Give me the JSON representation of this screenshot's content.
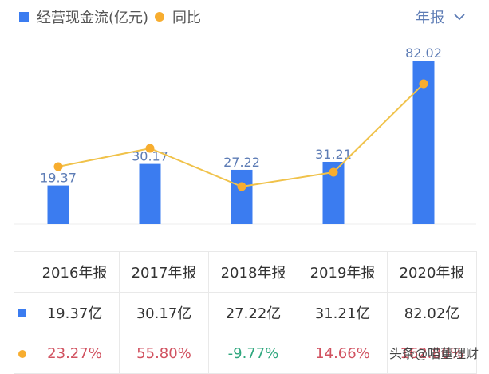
{
  "legend": {
    "bar_label": "经营现金流(亿元)",
    "line_label": "同比"
  },
  "period_selector": {
    "label": "年报",
    "icon": "chevron-down-icon"
  },
  "colors": {
    "bar": "#3b7cf0",
    "line": "#f7ad2f",
    "positive": "#d15260",
    "negative": "#2fa77e",
    "value_label": "#5d7cb5"
  },
  "chart_data": {
    "type": "bar",
    "title": "",
    "xlabel": "",
    "ylabel": "",
    "categories": [
      "2016年报",
      "2017年报",
      "2018年报",
      "2019年报",
      "2020年报"
    ],
    "series": [
      {
        "name": "经营现金流(亿元)",
        "type": "bar",
        "values": [
          19.37,
          30.17,
          27.22,
          31.21,
          82.02
        ],
        "labels": [
          "19.37",
          "30.17",
          "27.22",
          "31.21",
          "82.02"
        ]
      },
      {
        "name": "同比",
        "type": "line",
        "values": [
          23.27,
          55.8,
          -9.77,
          14.66,
          162.8
        ],
        "unit": "%"
      }
    ],
    "grid": false,
    "legend_position": "top-left"
  },
  "table": {
    "headers": [
      "2016年报",
      "2017年报",
      "2018年报",
      "2019年报",
      "2020年报"
    ],
    "cash_flow": [
      "19.37亿",
      "30.17亿",
      "27.22亿",
      "31.21亿",
      "82.02亿"
    ],
    "yoy": [
      "23.27%",
      "55.80%",
      "-9.77%",
      "14.66%",
      "162.80%"
    ]
  },
  "watermark": "头条@喵董理财"
}
